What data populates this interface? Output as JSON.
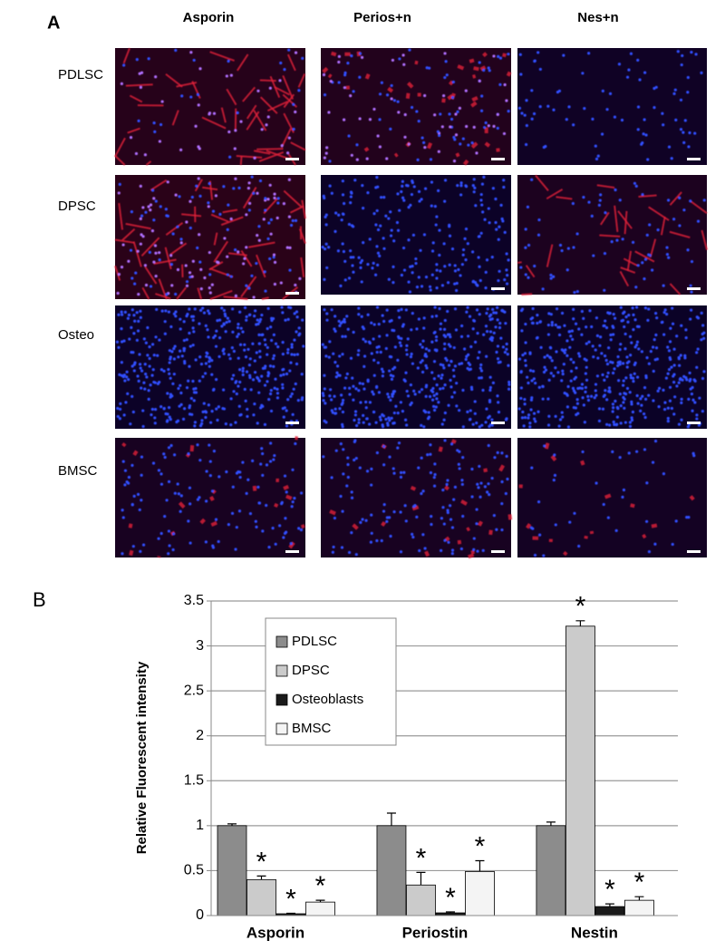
{
  "panel_a": {
    "label": "A",
    "columns": [
      "Asporin",
      "Perios+n",
      "Nes+n"
    ],
    "rows": [
      "PDLSC",
      "DPSC",
      "Osteo",
      "BMSC"
    ]
  },
  "chart_data": {
    "type": "bar",
    "label": "B",
    "y_label": "Relative Fluorescent intensity",
    "categories": [
      "Asporin",
      "Periostin",
      "Nestin"
    ],
    "series": [
      {
        "name": "PDLSC",
        "color": "#8c8c8c",
        "values": [
          1.0,
          1.0,
          1.0
        ],
        "errors": [
          0.02,
          0.14,
          0.04
        ],
        "markers": [
          null,
          null,
          null
        ]
      },
      {
        "name": "DPSC",
        "color": "#cbcbcb",
        "values": [
          0.4,
          0.34,
          3.22
        ],
        "errors": [
          0.04,
          0.14,
          0.06
        ],
        "markers": [
          "*",
          "*",
          "*"
        ]
      },
      {
        "name": "Osteoblasts",
        "color": "#1a1a1a",
        "values": [
          0.02,
          0.03,
          0.1
        ],
        "errors": [
          0.005,
          0.01,
          0.03
        ],
        "markers": [
          "*",
          "*",
          "*"
        ]
      },
      {
        "name": "BMSC",
        "color": "#f4f4f4",
        "values": [
          0.15,
          0.49,
          0.17
        ],
        "errors": [
          0.02,
          0.12,
          0.04
        ],
        "markers": [
          "*",
          "*",
          "*"
        ]
      }
    ],
    "ylim": [
      0,
      3.5
    ],
    "yticks": [
      0,
      0.5,
      1,
      1.5,
      2,
      2.5,
      3,
      3.5
    ],
    "grid": true
  }
}
